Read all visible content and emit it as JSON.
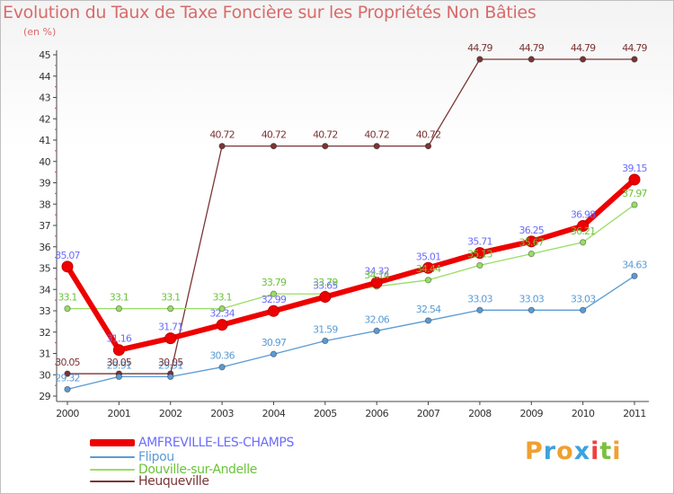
{
  "header": {
    "title": "Evolution du Taux de Taxe Foncière sur les Propriétés Non Bâties",
    "unit": "(en %)"
  },
  "brand": {
    "letters": [
      "P",
      "r",
      "o",
      "x",
      "i",
      "t",
      "i"
    ],
    "colors": [
      "#f0a030",
      "#3ba3e0",
      "#f0a030",
      "#3ba3e0",
      "#f04040",
      "#7cc040",
      "#f0a030"
    ]
  },
  "chart_data": {
    "type": "line",
    "title": "Evolution du Taux de Taxe Foncière sur les Propriétés Non Bâties",
    "ylabel": "(en %)",
    "xlabel": "",
    "x": [
      "2000",
      "2001",
      "2002",
      "2003",
      "2004",
      "2005",
      "2006",
      "2007",
      "2008",
      "2009",
      "2010",
      "2011"
    ],
    "ylim": [
      29,
      45
    ],
    "yticks": [
      "29",
      "30",
      "31",
      "32",
      "33",
      "34",
      "35",
      "36",
      "37",
      "38",
      "39",
      "40",
      "41",
      "42",
      "43",
      "44",
      "45"
    ],
    "grid": false,
    "legend": "bottom-left",
    "series": [
      {
        "name": "AMFREVILLE-LES-CHAMPS",
        "color": "#ee0000",
        "label_color": "#6b6bff",
        "values": [
          35.07,
          31.16,
          31.71,
          32.34,
          32.99,
          33.65,
          34.32,
          35.01,
          35.71,
          36.25,
          36.98,
          39.15
        ],
        "labels": [
          "35.07",
          "31.16",
          "31.71",
          "32.34",
          "32.99",
          "33.65",
          "34.32",
          "35.01",
          "35.71",
          "36.25",
          "36.98",
          "39.15"
        ]
      },
      {
        "name": "Flipou",
        "color": "#5a9bd5",
        "label_color": "#5a9bd5",
        "values": [
          29.32,
          29.91,
          29.91,
          30.36,
          30.97,
          31.59,
          32.06,
          32.54,
          33.03,
          33.03,
          33.03,
          34.63
        ],
        "labels": [
          "29.32",
          "29.91",
          "29.91",
          "30.36",
          "30.97",
          "31.59",
          "32.06",
          "32.54",
          "33.03",
          "33.03",
          "33.03",
          "34.63"
        ]
      },
      {
        "name": "Douville-sur-Andelle",
        "color": "#99dd66",
        "label_color": "#6bc23b",
        "values": [
          33.1,
          33.1,
          33.1,
          33.1,
          33.79,
          33.79,
          34.14,
          34.44,
          35.13,
          35.67,
          36.21,
          37.97
        ],
        "labels": [
          "33.1",
          "33.1",
          "33.1",
          "33.1",
          "33.79",
          "33.79",
          "34.14",
          "34.44",
          "35.13",
          "35.67",
          "36.21",
          "37.97"
        ]
      },
      {
        "name": "Heuqueville",
        "color": "#7a3535",
        "label_color": "#7a3535",
        "values": [
          30.05,
          30.05,
          30.05,
          40.72,
          40.72,
          40.72,
          40.72,
          40.72,
          44.79,
          44.79,
          44.79,
          44.79
        ],
        "labels": [
          "30.05",
          "30.05",
          "30.05",
          "40.72",
          "40.72",
          "40.72",
          "40.72",
          "40.72",
          "44.79",
          "44.79",
          "44.79",
          "44.79"
        ]
      }
    ]
  }
}
